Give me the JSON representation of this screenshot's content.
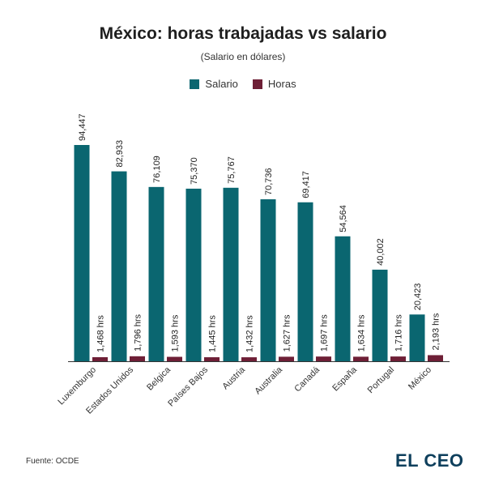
{
  "chart_data": {
    "type": "bar",
    "title": "México: horas trabajadas vs salario",
    "subtitle": "(Salario en dólares)",
    "categories": [
      "Luxemburgo",
      "Estados Unidos",
      "Belgica",
      "Países Bajos",
      "Austria",
      "Australia",
      "Canadá",
      "España",
      "Portugal",
      "México"
    ],
    "series": [
      {
        "name": "Salario",
        "color": "#0a6670",
        "values": [
          94447,
          82933,
          76109,
          75370,
          75767,
          70736,
          69417,
          54564,
          40002,
          20423
        ],
        "labels": [
          "94,447",
          "82,933",
          "76,109",
          "75,370",
          "75,767",
          "70,736",
          "69,417",
          "54,564",
          "40,002",
          "20,423"
        ]
      },
      {
        "name": "Horas",
        "color": "#6e1f36",
        "values": [
          1468,
          1796,
          1593,
          1445,
          1432,
          1627,
          1697,
          1634,
          1716,
          2193
        ],
        "labels": [
          "1,468 hrs",
          "1,796 hrs",
          "1,593 hrs",
          "1,445 hrs",
          "1,432 hrs",
          "1,627 hrs",
          "1,697 hrs",
          "1,634 hrs",
          "1,716 hrs",
          "2,193 hrs"
        ]
      }
    ],
    "ylim": [
      0,
      100000
    ],
    "grid": false,
    "legend": "top-center"
  },
  "footer": {
    "source": "Fuente: OCDE",
    "logo_text": "EL CEO"
  }
}
